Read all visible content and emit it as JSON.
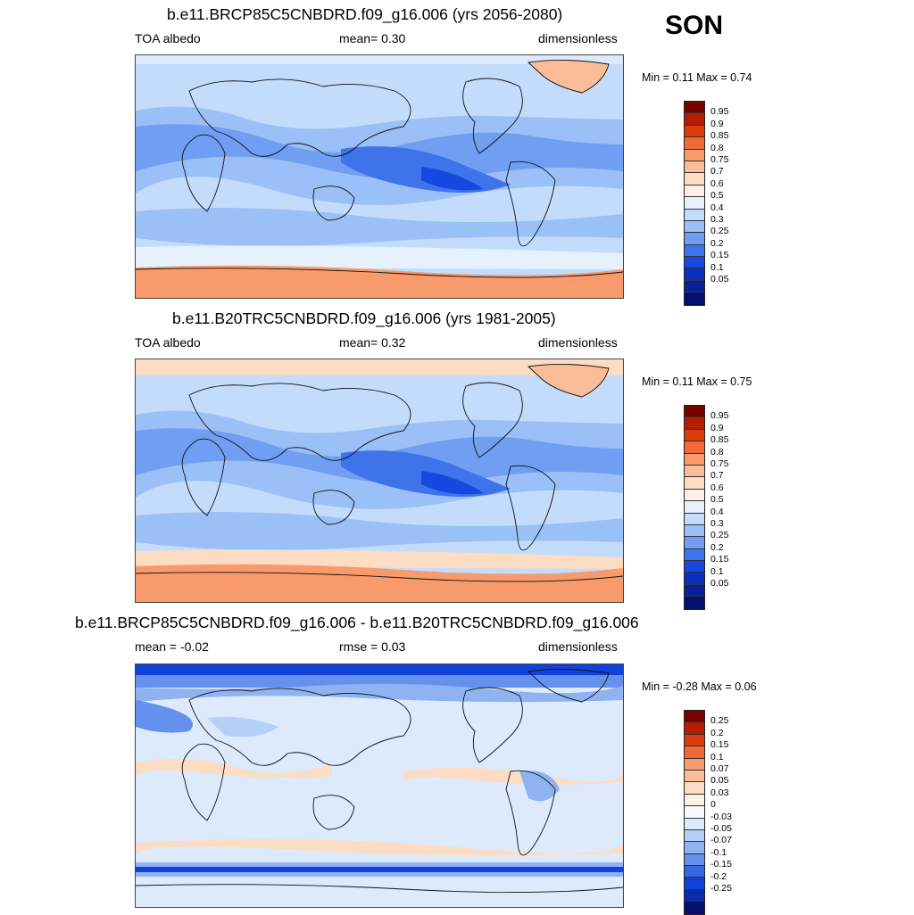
{
  "season": "SON",
  "panels": [
    {
      "title": "b.e11.BRCP85C5CNBDRD.f09_g16.006 (yrs 2056-2080)",
      "left_label": "TOA albedo",
      "mid_label": "mean=   0.30",
      "right_label": "dimensionless",
      "minmax": "Min =   0.11 Max =   0.74",
      "colorbar": {
        "colors": [
          "#7a0000",
          "#b51d00",
          "#dc3c0c",
          "#f06a38",
          "#f89a6c",
          "#fbbd97",
          "#fddcc4",
          "#fdf0e6",
          "#e6f1fd",
          "#c4dcfb",
          "#9bc0f7",
          "#6f9ef2",
          "#3f73ea",
          "#1549e0",
          "#0a2fc0",
          "#07209a",
          "#031070"
        ],
        "labels": [
          "0.95",
          "0.9",
          "0.85",
          "0.8",
          "0.75",
          "0.7",
          "0.6",
          "0.5",
          "0.4",
          "0.3",
          "0.25",
          "0.2",
          "0.15",
          "0.1",
          "0.05"
        ]
      }
    },
    {
      "title": "b.e11.B20TRC5CNBDRD.f09_g16.006 (yrs 1981-2005)",
      "left_label": "TOA albedo",
      "mid_label": "mean=   0.32",
      "right_label": "dimensionless",
      "minmax": "Min =   0.11 Max =   0.75",
      "colorbar": {
        "colors": [
          "#7a0000",
          "#b51d00",
          "#dc3c0c",
          "#f06a38",
          "#f89a6c",
          "#fbbd97",
          "#fddcc4",
          "#fdf0e6",
          "#e6f1fd",
          "#c4dcfb",
          "#9bc0f7",
          "#6f9ef2",
          "#3f73ea",
          "#1549e0",
          "#0a2fc0",
          "#07209a",
          "#031070"
        ],
        "labels": [
          "0.95",
          "0.9",
          "0.85",
          "0.8",
          "0.75",
          "0.7",
          "0.6",
          "0.5",
          "0.4",
          "0.3",
          "0.25",
          "0.2",
          "0.15",
          "0.1",
          "0.05"
        ]
      }
    },
    {
      "title": "b.e11.BRCP85C5CNBDRD.f09_g16.006 - b.e11.B20TRC5CNBDRD.f09_g16.006",
      "left_label": "mean =  -0.02",
      "mid_label": "rmse =   0.03",
      "right_label": "dimensionless",
      "minmax": "Min =  -0.28 Max =   0.06",
      "colorbar": {
        "colors": [
          "#7a0000",
          "#b51d00",
          "#dc3c0c",
          "#f06a38",
          "#f89a6c",
          "#fbbd97",
          "#fddcc4",
          "#fdf0e6",
          "#f8f8ff",
          "#dceafc",
          "#b6d1f8",
          "#8fb2f3",
          "#6490ee",
          "#3568e6",
          "#1242da",
          "#0a2aaf",
          "#031070"
        ],
        "labels": [
          "0.25",
          "0.2",
          "0.15",
          "0.1",
          "0.07",
          "0.05",
          "0.03",
          "0",
          "-0.03",
          "-0.05",
          "-0.07",
          "-0.1",
          "-0.15",
          "-0.2",
          "-0.25"
        ]
      }
    }
  ]
}
